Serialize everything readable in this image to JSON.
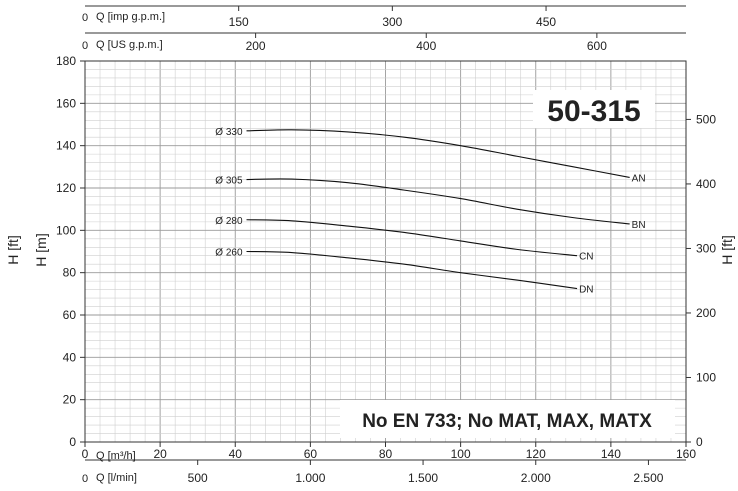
{
  "chart_data": {
    "type": "line",
    "title": "50-315",
    "note": "No EN 733; No MAT, MAX, MATX",
    "xlabel": "Q [m³/h]",
    "ylabel": "H [m]",
    "ylabel_right": "H [ft]",
    "xlim": [
      0,
      160
    ],
    "ylim": [
      0,
      180
    ],
    "x_ticks": [
      "0",
      "20",
      "40",
      "60",
      "80",
      "100",
      "120",
      "140",
      "160"
    ],
    "y_ticks": [
      "0",
      "20",
      "40",
      "60",
      "80",
      "100",
      "120",
      "140",
      "160",
      "180"
    ],
    "grid": true,
    "secondary_axes": {
      "right": {
        "label": "H [ft]",
        "ticks": [
          {
            "label": "0",
            "value": 0
          },
          {
            "label": "100",
            "value": 30.48
          },
          {
            "label": "200",
            "value": 60.96
          },
          {
            "label": "300",
            "value": 91.44
          },
          {
            "label": "400",
            "value": 121.92
          },
          {
            "label": "500",
            "value": 152.4
          }
        ]
      },
      "bottom": {
        "label": "Q [l/min]",
        "zero": "0",
        "ticks": [
          {
            "label": "500",
            "value": 30
          },
          {
            "label": "1.000",
            "value": 60
          },
          {
            "label": "1.500",
            "value": 90
          },
          {
            "label": "2.000",
            "value": 120
          },
          {
            "label": "2.500",
            "value": 150
          }
        ]
      },
      "top_us": {
        "label": "Q [US g.p.m.]",
        "zero": "0",
        "ticks": [
          {
            "label": "200",
            "value": 45.42
          },
          {
            "label": "400",
            "value": 90.85
          },
          {
            "label": "600",
            "value": 136.27
          }
        ]
      },
      "top_imp": {
        "label": "Q [imp g.p.m.]",
        "zero": "0",
        "ticks": [
          {
            "label": "150",
            "value": 40.91
          },
          {
            "label": "300",
            "value": 81.82
          },
          {
            "label": "450",
            "value": 122.74
          }
        ]
      }
    },
    "series": [
      {
        "name": "AN",
        "diameter": "Ø 330",
        "x": [
          43,
          55,
          70,
          85,
          100,
          115,
          130,
          145
        ],
        "y": [
          147,
          147.5,
          146.5,
          144,
          140,
          135,
          130,
          125
        ]
      },
      {
        "name": "BN",
        "diameter": "Ø 305",
        "x": [
          43,
          55,
          70,
          85,
          100,
          115,
          130,
          145
        ],
        "y": [
          124,
          124.2,
          122.5,
          119,
          115,
          110,
          106,
          103
        ]
      },
      {
        "name": "CN",
        "diameter": "Ø 280",
        "x": [
          43,
          55,
          70,
          85,
          100,
          115,
          131
        ],
        "y": [
          105,
          104.5,
          102,
          99,
          95,
          91,
          88
        ]
      },
      {
        "name": "DN",
        "diameter": "Ø 260",
        "x": [
          43,
          55,
          70,
          85,
          100,
          115,
          131
        ],
        "y": [
          90,
          89.5,
          87,
          84,
          80,
          76.5,
          72.5
        ]
      }
    ]
  }
}
